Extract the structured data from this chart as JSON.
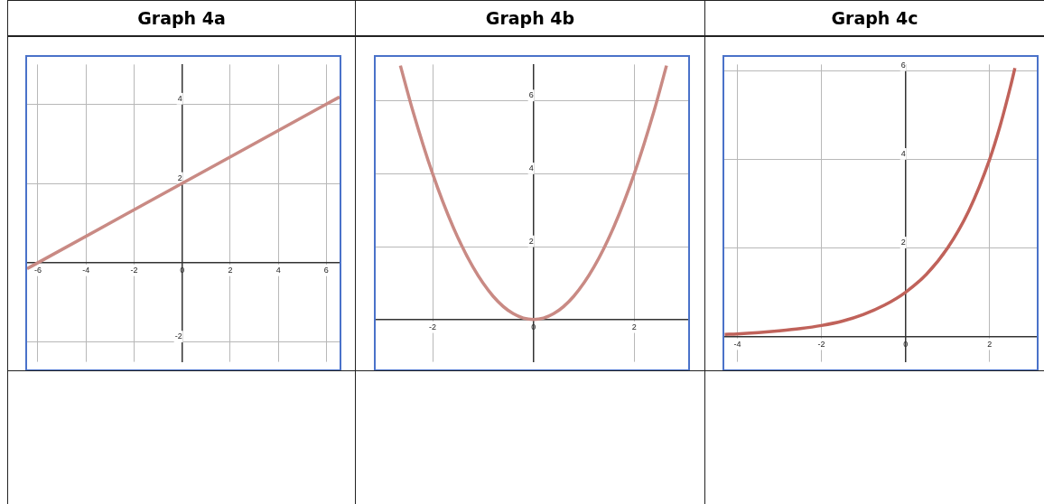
{
  "chart_data": [
    {
      "type": "line",
      "title": "Graph 4a",
      "x": [
        -6.45,
        -6,
        0,
        6,
        6.55
      ],
      "values": [
        -0.15,
        0,
        2,
        4,
        4.18
      ],
      "color": "#c98a84",
      "xlim": [
        -6.45,
        6.55
      ],
      "ylim": [
        -2.5,
        5
      ],
      "xticks": [
        -6,
        -4,
        -2,
        0,
        2,
        4,
        6
      ],
      "yticks": [
        -2,
        2,
        4
      ],
      "grid": true
    },
    {
      "type": "line",
      "title": "Graph 4b",
      "x": [
        -2.64,
        -2.4,
        -2,
        -1.6,
        -1.2,
        -0.8,
        -0.4,
        0,
        0.4,
        0.8,
        1.2,
        1.6,
        2,
        2.4,
        2.64
      ],
      "values": [
        6.97,
        5.76,
        4,
        2.56,
        1.44,
        0.64,
        0.16,
        0,
        0.16,
        0.64,
        1.44,
        2.56,
        4,
        5.76,
        6.97
      ],
      "color": "#c98a84",
      "xlim": [
        -3.13,
        3.07
      ],
      "ylim": [
        -1.16,
        7
      ],
      "xticks": [
        -2,
        0,
        2
      ],
      "yticks": [
        2,
        4,
        6
      ],
      "grid": true
    },
    {
      "type": "line",
      "title": "Graph 4c",
      "x": [
        -4.3,
        -4,
        -3.5,
        -3,
        -2.5,
        -2,
        -1.5,
        -1,
        -0.5,
        0,
        0.5,
        1,
        1.5,
        2,
        2.25,
        2.5,
        2.6
      ],
      "values": [
        0.05,
        0.06,
        0.09,
        0.13,
        0.18,
        0.25,
        0.35,
        0.5,
        0.71,
        1,
        1.41,
        2,
        2.83,
        4,
        4.76,
        5.66,
        6.06
      ],
      "color": "#c0625a",
      "xlim": [
        -4.31,
        3.12
      ],
      "ylim": [
        -0.57,
        6.14
      ],
      "xticks": [
        -4,
        -2,
        0,
        2
      ],
      "yticks": [
        2,
        4,
        6
      ],
      "grid": true
    }
  ]
}
